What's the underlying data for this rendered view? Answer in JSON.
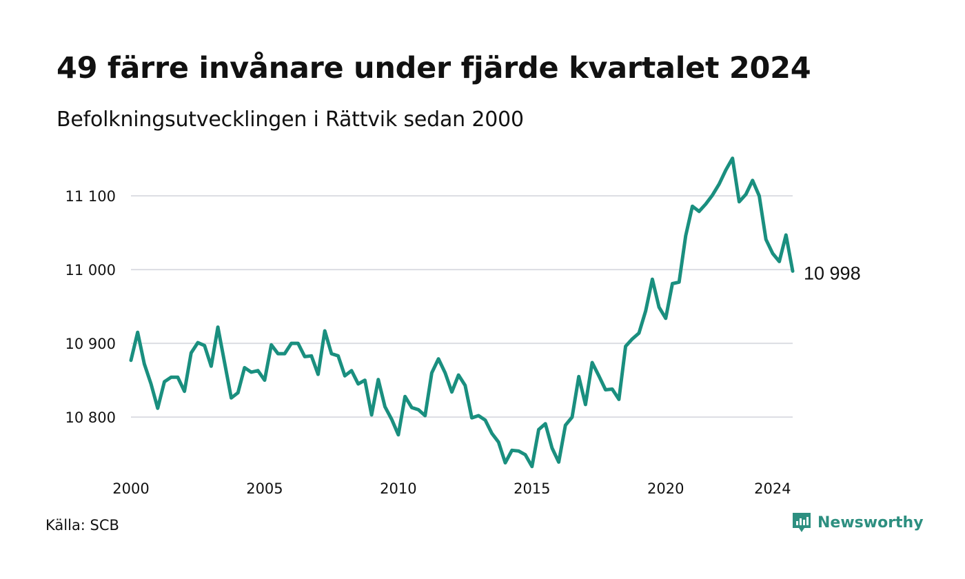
{
  "header": {
    "title": "49 färre invånare under fjärde kvartalet 2024",
    "subtitle": "Befolkningsutvecklingen i Rättvik sedan 2000"
  },
  "footer": {
    "source": "Källa: SCB",
    "brand": "Newsworthy",
    "brand_icon": "newsworthy-logo-icon"
  },
  "colors": {
    "line": "#1a8f7f",
    "grid": "#dcdde3",
    "brand": "#2d8f80",
    "text": "#111111"
  },
  "chart_data": {
    "type": "line",
    "x_start": 2000,
    "x_step": 0.25,
    "xlim": [
      2000,
      2024.75
    ],
    "ylim": [
      10730,
      11160
    ],
    "y_ticks": [
      10800,
      10900,
      11000,
      11100
    ],
    "y_tick_labels": [
      "10 800",
      "10 900",
      "11 000",
      "11 100"
    ],
    "x_ticks": [
      2000,
      2005,
      2010,
      2015,
      2020,
      2024
    ],
    "x_tick_labels": [
      "2000",
      "2005",
      "2010",
      "2015",
      "2020",
      "2024"
    ],
    "grid": true,
    "end_label": "10 998",
    "series": [
      {
        "values": [
          10877,
          10915,
          10872,
          10845,
          10812,
          10848,
          10854,
          10854,
          10835,
          10887,
          10901,
          10897,
          10869,
          10922,
          10874,
          10826,
          10833,
          10867,
          10861,
          10863,
          10850,
          10898,
          10886,
          10886,
          10900,
          10900,
          10882,
          10883,
          10858,
          10917,
          10886,
          10883,
          10856,
          10863,
          10845,
          10850,
          10803,
          10851,
          10814,
          10797,
          10776,
          10828,
          10813,
          10810,
          10802,
          10860,
          10879,
          10860,
          10834,
          10857,
          10843,
          10799,
          10802,
          10796,
          10778,
          10766,
          10738,
          10755,
          10754,
          10749,
          10733,
          10783,
          10791,
          10758,
          10739,
          10789,
          10800,
          10855,
          10817,
          10874,
          10856,
          10837,
          10838,
          10824,
          10896,
          10906,
          10914,
          10944,
          10987,
          10949,
          10934,
          10981,
          10983,
          11046,
          11086,
          11079,
          11089,
          11101,
          11116,
          11135,
          11151,
          11092,
          11102,
          11121,
          11100,
          11041,
          11022,
          11011,
          11047,
          10998
        ]
      }
    ]
  }
}
